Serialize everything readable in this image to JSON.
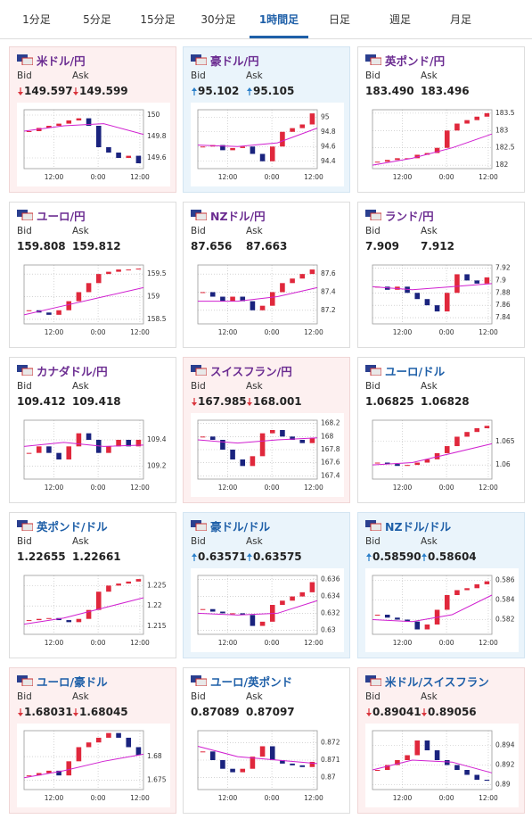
{
  "tabs": [
    "1分足",
    "5分足",
    "15分足",
    "30分足",
    "1時間足",
    "日足",
    "週足",
    "月足"
  ],
  "active_tab": 4,
  "bid_label": "Bid",
  "ask_label": "Ask",
  "xlabels": [
    "12:00",
    "0:00",
    "12:00"
  ],
  "cards": [
    {
      "pair": "米ドル/円",
      "title_color": "#6b2c91",
      "bg": "pink",
      "trend": "down",
      "bid": "149.597",
      "ask": "149.599",
      "ylim": [
        149.5,
        150.05
      ],
      "yticks": [
        150,
        149.8,
        149.6
      ],
      "closes": [
        149.85,
        149.88,
        149.9,
        149.92,
        149.95,
        149.97,
        149.9,
        149.7,
        149.65,
        149.6,
        149.62,
        149.55
      ],
      "ma": [
        149.85,
        149.9,
        149.92,
        149.82
      ]
    },
    {
      "pair": "豪ドル/円",
      "title_color": "#6b2c91",
      "bg": "blue",
      "trend": "up",
      "bid": "95.102",
      "ask": "95.105",
      "ylim": [
        94.3,
        95.1
      ],
      "yticks": [
        95,
        94.8,
        94.6,
        94.4
      ],
      "closes": [
        94.6,
        94.62,
        94.55,
        94.58,
        94.6,
        94.5,
        94.4,
        94.6,
        94.8,
        94.85,
        94.9,
        95.05
      ],
      "ma": [
        94.62,
        94.6,
        94.65,
        94.85
      ]
    },
    {
      "pair": "英ポンド/円",
      "title_color": "#6b2c91",
      "bg": "white",
      "trend": null,
      "bid": "183.490",
      "ask": "183.496",
      "ylim": [
        181.9,
        183.6
      ],
      "yticks": [
        183.5,
        183,
        182.5,
        182
      ],
      "closes": [
        182.1,
        182.15,
        182.2,
        182.2,
        182.3,
        182.35,
        182.5,
        183,
        183.2,
        183.3,
        183.4,
        183.5
      ],
      "ma": [
        182.0,
        182.2,
        182.5,
        182.9
      ]
    },
    {
      "pair": "ユーロ/円",
      "title_color": "#6b2c91",
      "bg": "white",
      "trend": null,
      "bid": "159.808",
      "ask": "159.812",
      "ylim": [
        158.4,
        159.7
      ],
      "yticks": [
        159.5,
        159,
        158.5
      ],
      "closes": [
        158.7,
        158.65,
        158.6,
        158.7,
        158.9,
        159.1,
        159.3,
        159.5,
        159.55,
        159.6,
        159.6,
        159.62
      ],
      "ma": [
        158.6,
        158.8,
        159.0,
        159.2
      ]
    },
    {
      "pair": "NZドル/円",
      "title_color": "#6b2c91",
      "bg": "white",
      "trend": null,
      "bid": "87.656",
      "ask": "87.663",
      "ylim": [
        87.05,
        87.7
      ],
      "yticks": [
        87.6,
        87.4,
        87.2
      ],
      "closes": [
        87.4,
        87.35,
        87.3,
        87.35,
        87.3,
        87.2,
        87.25,
        87.4,
        87.5,
        87.55,
        87.6,
        87.65
      ],
      "ma": [
        87.3,
        87.3,
        87.35,
        87.45
      ]
    },
    {
      "pair": "ランド/円",
      "title_color": "#6b2c91",
      "bg": "white",
      "trend": null,
      "bid": "7.909",
      "ask": "7.912",
      "ylim": [
        7.83,
        7.925
      ],
      "yticks": [
        7.92,
        7.9,
        7.88,
        7.86,
        7.84
      ],
      "closes": [
        7.89,
        7.885,
        7.89,
        7.88,
        7.87,
        7.86,
        7.85,
        7.88,
        7.91,
        7.9,
        7.895,
        7.905
      ],
      "ma": [
        7.89,
        7.885,
        7.89,
        7.895
      ]
    },
    {
      "pair": "カナダドル/円",
      "title_color": "#6b2c91",
      "bg": "white",
      "trend": null,
      "bid": "109.412",
      "ask": "109.418",
      "ylim": [
        109.1,
        109.55
      ],
      "yticks": [
        109.4,
        109.2
      ],
      "closes": [
        109.3,
        109.35,
        109.3,
        109.25,
        109.35,
        109.45,
        109.4,
        109.3,
        109.35,
        109.4,
        109.35,
        109.4
      ],
      "ma": [
        109.35,
        109.38,
        109.35,
        109.36
      ]
    },
    {
      "pair": "スイスフラン/円",
      "title_color": "#6b2c91",
      "bg": "pink",
      "trend": "down",
      "bid": "167.985",
      "ask": "168.001",
      "ylim": [
        167.35,
        168.25
      ],
      "yticks": [
        168.2,
        168,
        167.8,
        167.6,
        167.4
      ],
      "closes": [
        168,
        167.95,
        167.8,
        167.65,
        167.55,
        167.7,
        168.05,
        168.1,
        168,
        167.95,
        167.9,
        167.98
      ],
      "ma": [
        167.95,
        167.9,
        167.95,
        167.98
      ]
    },
    {
      "pair": "ユーロ/ドル",
      "title_color": "#1e5fa8",
      "bg": "white",
      "trend": null,
      "bid": "1.06825",
      "ask": "1.06828",
      "ylim": [
        1.057,
        1.0695
      ],
      "yticks": [
        1.065,
        1.06
      ],
      "closes": [
        1.0605,
        1.0602,
        1.0598,
        1.06,
        1.0605,
        1.0612,
        1.0625,
        1.064,
        1.066,
        1.067,
        1.0678,
        1.0683
      ],
      "ma": [
        1.06,
        1.0605,
        1.0625,
        1.0645
      ]
    },
    {
      "pair": "英ポンド/ドル",
      "title_color": "#1e5fa8",
      "bg": "white",
      "trend": null,
      "bid": "1.22655",
      "ask": "1.22661",
      "ylim": [
        1.213,
        1.2275
      ],
      "yticks": [
        1.225,
        1.22,
        1.215
      ],
      "closes": [
        1.2165,
        1.2168,
        1.217,
        1.2165,
        1.216,
        1.2168,
        1.219,
        1.2235,
        1.225,
        1.2255,
        1.226,
        1.2266
      ],
      "ma": [
        1.2155,
        1.217,
        1.2195,
        1.222
      ]
    },
    {
      "pair": "豪ドル/ドル",
      "title_color": "#1e5fa8",
      "bg": "blue",
      "trend": "up",
      "bid": "0.63571",
      "ask": "0.63575",
      "ylim": [
        0.6295,
        0.6365
      ],
      "yticks": [
        0.636,
        0.634,
        0.632,
        0.63
      ],
      "closes": [
        0.6325,
        0.6322,
        0.632,
        0.632,
        0.6318,
        0.6305,
        0.631,
        0.633,
        0.6335,
        0.634,
        0.6345,
        0.6357
      ],
      "ma": [
        0.632,
        0.6318,
        0.632,
        0.6335
      ]
    },
    {
      "pair": "NZドル/ドル",
      "title_color": "#1e5fa8",
      "bg": "blue",
      "trend": "up",
      "bid": "0.58590",
      "ask": "0.58604",
      "ylim": [
        0.5805,
        0.5865
      ],
      "yticks": [
        0.586,
        0.584,
        0.582
      ],
      "closes": [
        0.5825,
        0.5822,
        0.582,
        0.5818,
        0.581,
        0.5815,
        0.583,
        0.5845,
        0.585,
        0.5852,
        0.5856,
        0.5859
      ],
      "ma": [
        0.582,
        0.5818,
        0.5825,
        0.5845
      ]
    },
    {
      "pair": "ユーロ/豪ドル",
      "title_color": "#1e5fa8",
      "bg": "pink",
      "trend": "down",
      "bid": "1.68031",
      "ask": "1.68045",
      "ylim": [
        1.673,
        1.6855
      ],
      "yticks": [
        1.68,
        1.675
      ],
      "closes": [
        1.676,
        1.6765,
        1.677,
        1.676,
        1.679,
        1.682,
        1.683,
        1.684,
        1.685,
        1.684,
        1.682,
        1.6803
      ],
      "ma": [
        1.6755,
        1.677,
        1.679,
        1.6805
      ]
    },
    {
      "pair": "ユーロ/英ポンド",
      "title_color": "#1e5fa8",
      "bg": "white",
      "trend": null,
      "bid": "0.87089",
      "ask": "0.87097",
      "ylim": [
        0.8693,
        0.8727
      ],
      "yticks": [
        0.872,
        0.871,
        0.87
      ],
      "closes": [
        0.8715,
        0.871,
        0.8705,
        0.8703,
        0.8705,
        0.8712,
        0.8718,
        0.871,
        0.8708,
        0.8707,
        0.8706,
        0.8709
      ],
      "ma": [
        0.8718,
        0.8712,
        0.871,
        0.8708
      ]
    },
    {
      "pair": "米ドル/スイスフラン",
      "title_color": "#1e5fa8",
      "bg": "pink",
      "trend": "down",
      "bid": "0.89041",
      "ask": "0.89056",
      "ylim": [
        0.8895,
        0.8955
      ],
      "yticks": [
        0.894,
        0.892,
        0.89
      ],
      "closes": [
        0.8915,
        0.892,
        0.8925,
        0.893,
        0.8945,
        0.8935,
        0.8925,
        0.892,
        0.8915,
        0.891,
        0.8905,
        0.8904
      ],
      "ma": [
        0.8915,
        0.8925,
        0.8923,
        0.8912
      ]
    }
  ]
}
